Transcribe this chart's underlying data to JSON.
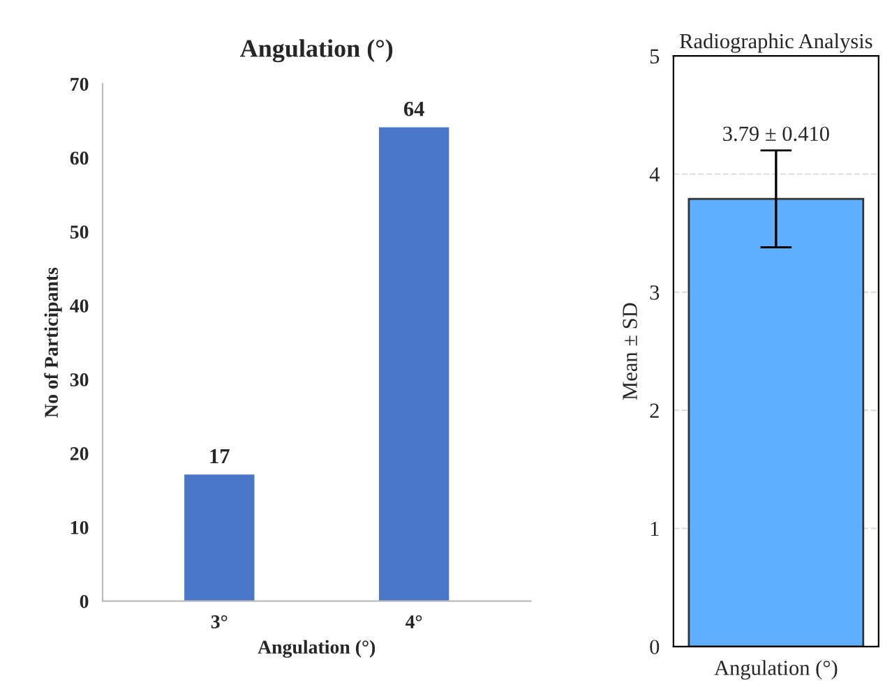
{
  "chart_data": [
    {
      "type": "bar",
      "title": "Angulation (°)",
      "xlabel": "Angulation (°)",
      "ylabel": "No of Participants",
      "categories": [
        "3°",
        "4°"
      ],
      "values": [
        17,
        64
      ],
      "color": "#4a76c8",
      "ylim": [
        0,
        70
      ],
      "yticks": [
        0,
        10,
        20,
        30,
        40,
        50,
        60,
        70
      ],
      "data_labels": true,
      "grid": false
    },
    {
      "type": "bar",
      "title": "Radiographic Analysis",
      "ylabel": "Mean ± SD",
      "categories": [
        "Angulation (°)"
      ],
      "values": [
        3.79
      ],
      "errors": [
        0.41
      ],
      "value_labels": [
        "3.79 ± 0.410"
      ],
      "color": "#5eb0ff",
      "ylim": [
        0,
        5
      ],
      "yticks": [
        0,
        1,
        2,
        3,
        4,
        5
      ],
      "grid": "y"
    }
  ]
}
